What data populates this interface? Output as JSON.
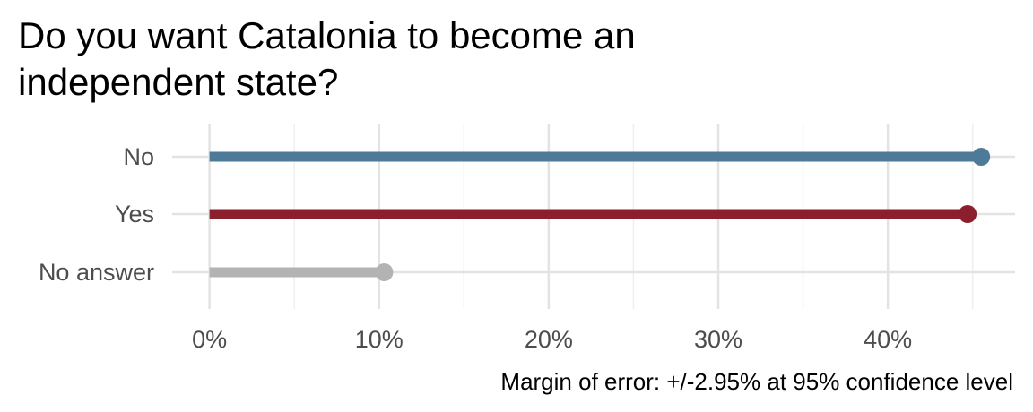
{
  "chart_data": {
    "type": "lollipop",
    "title": "Do you want Catalonia to become an independent state?",
    "caption": "Margin of error: +/-2.95% at 95% confidence level",
    "categories": [
      "No",
      "Yes",
      "No answer"
    ],
    "values": [
      45.5,
      44.7,
      10.3
    ],
    "colors": [
      "#4e7a9a",
      "#8b1f2d",
      "#b3b3b3"
    ],
    "x_ticks": [
      0,
      10,
      20,
      30,
      40
    ],
    "x_tick_labels": [
      "0%",
      "10%",
      "20%",
      "30%",
      "40%"
    ],
    "xlim": [
      -2.2,
      47.5
    ],
    "grid": true,
    "legend": "none"
  }
}
